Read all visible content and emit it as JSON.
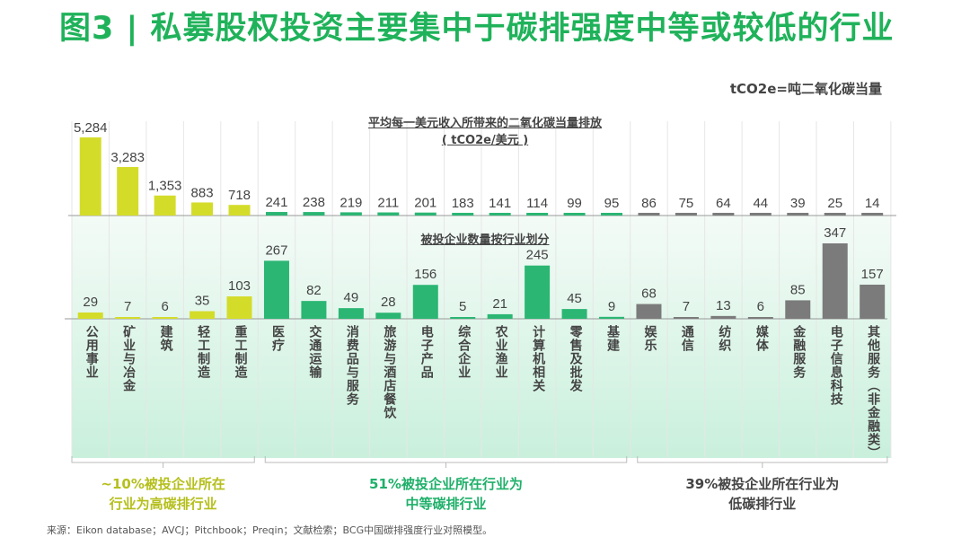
{
  "title": "图3 | 私募股权投资主要集中于碳排强度中等或较低的行业",
  "unit_note": "tCO2e=吨二氧化碳当量",
  "chart_data": [
    {
      "type": "bar",
      "title": "平均每一美元收入所带来的二氧化碳当量排放",
      "subtitle": "( tCO2e/美元 )",
      "categories": [
        "公用事业",
        "矿业与冶金",
        "建筑",
        "轻工制造",
        "重工制造",
        "医疗",
        "交通运输",
        "消费品与服务",
        "旅游与酒店餐饮",
        "电子产品",
        "综合企业",
        "农业渔业",
        "计算机相关",
        "零售及批发",
        "基建",
        "娱乐",
        "通信",
        "纺织",
        "媒体",
        "金融服务",
        "电子信息科技",
        "其他服务（非金融类）"
      ],
      "values": [
        5284,
        3283,
        1353,
        883,
        718,
        241,
        238,
        219,
        211,
        201,
        183,
        141,
        114,
        99,
        95,
        86,
        75,
        64,
        44,
        39,
        25,
        14
      ],
      "labels": [
        "5,284",
        "3,283",
        "1,353",
        "883",
        "718",
        "241",
        "238",
        "219",
        "211",
        "201",
        "183",
        "141",
        "114",
        "99",
        "95",
        "86",
        "75",
        "64",
        "44",
        "39",
        "25",
        "14"
      ]
    },
    {
      "type": "bar",
      "title": "被投企业数量按行业划分",
      "values": [
        29,
        7,
        6,
        35,
        103,
        267,
        82,
        49,
        28,
        156,
        5,
        21,
        245,
        45,
        9,
        68,
        7,
        13,
        6,
        85,
        347,
        157
      ]
    }
  ],
  "groups": [
    {
      "line1": "~10%被投企业所在",
      "line2": "行业为高碳排行业",
      "color": "#b5bf1c",
      "count": 5
    },
    {
      "line1": "51%被投企业所在行业为",
      "line2": "中等碳排行业",
      "color": "#1fb06a",
      "count": 10
    },
    {
      "line1": "39%被投企业所在行业为",
      "line2": "低碳排行业",
      "color": "#444444",
      "count": 7
    }
  ],
  "colors": [
    "#d4dc2a",
    "#2bb673",
    "#7b7b7b"
  ],
  "source": "来源：Eikon database；AVCJ；Pitchbook；Preqin；文献检索；BCG中国碳排强度行业对照模型。"
}
